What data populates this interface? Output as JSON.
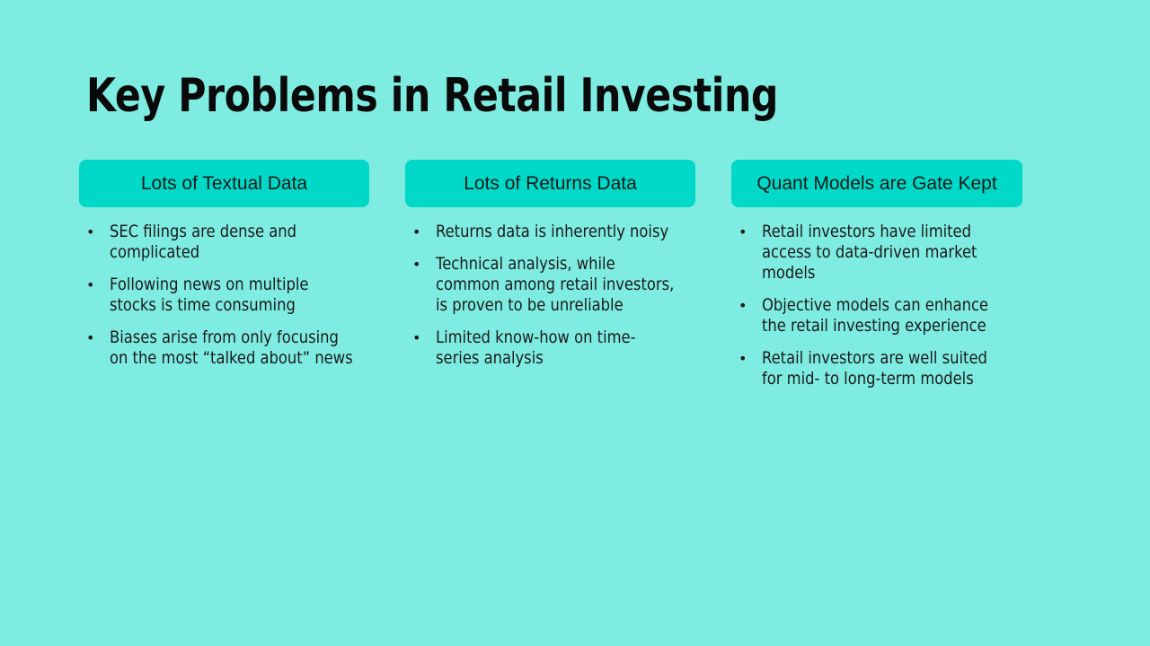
{
  "slide": {
    "title": "Key Problems in Retail Investing",
    "columns": [
      {
        "header": "Lots of Textual Data",
        "bullets": [
          [
            "SEC filings are dense and",
            "complicated"
          ],
          [
            "Following news on multiple",
            "stocks is time consuming"
          ],
          [
            "Biases arise from only focusing",
            "on the most “talked about” news"
          ]
        ]
      },
      {
        "header": "Lots of Returns Data",
        "bullets": [
          [
            "Returns data is inherently noisy"
          ],
          [
            "Technical analysis, while",
            "common among retail investors,",
            "is proven to be unreliable"
          ],
          [
            "Limited know-how on time-",
            "series analysis"
          ]
        ]
      },
      {
        "header": "Quant Models are Gate Kept",
        "bullets": [
          [
            "Retail investors have limited",
            "access to data-driven market",
            "models"
          ],
          [
            "Objective models can enhance",
            "the retail investing experience"
          ],
          [
            "Retail investors are well suited",
            "for mid- to long-term models"
          ]
        ]
      }
    ],
    "bullet_glyph": "•",
    "colors": {
      "background": "#7fece1",
      "header_box": "#00d9c7",
      "text": "#1a1a1a"
    }
  }
}
